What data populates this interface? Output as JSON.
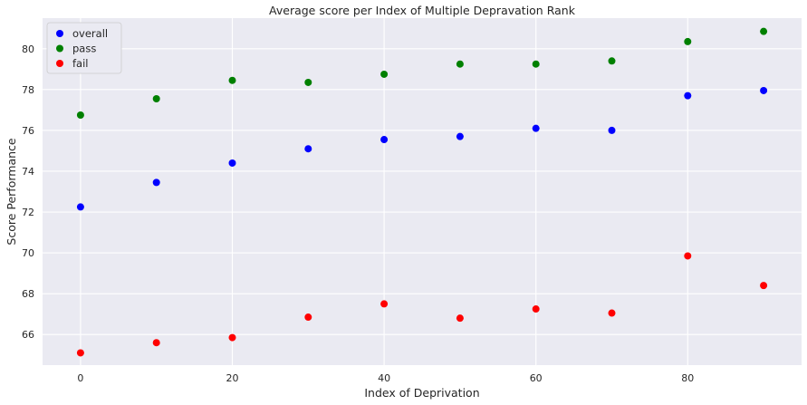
{
  "chart_data": {
    "type": "scatter",
    "title": "Average score per Index of Multiple Depravation Rank",
    "xlabel": "Index of Deprivation",
    "ylabel": "Score Performance",
    "xlim": [
      -5,
      95
    ],
    "ylim": [
      64.5,
      81.5
    ],
    "x_ticks": [
      0,
      20,
      40,
      60,
      80
    ],
    "y_ticks": [
      66,
      68,
      70,
      72,
      74,
      76,
      78,
      80
    ],
    "grid": true,
    "legend_position": "top-left",
    "x": [
      0,
      10,
      20,
      30,
      40,
      50,
      60,
      70,
      80,
      90
    ],
    "series": [
      {
        "name": "overall",
        "color": "#0000ff",
        "values": [
          72.25,
          73.45,
          74.4,
          75.1,
          75.55,
          75.7,
          76.1,
          76.0,
          77.7,
          77.95
        ]
      },
      {
        "name": "pass",
        "color": "#008000",
        "values": [
          76.75,
          77.55,
          78.45,
          78.35,
          78.75,
          79.25,
          79.25,
          79.4,
          80.35,
          80.85
        ]
      },
      {
        "name": "fail",
        "color": "#ff0000",
        "values": [
          65.1,
          65.6,
          65.85,
          66.85,
          67.5,
          66.8,
          67.25,
          67.05,
          69.85,
          68.4
        ]
      }
    ]
  }
}
